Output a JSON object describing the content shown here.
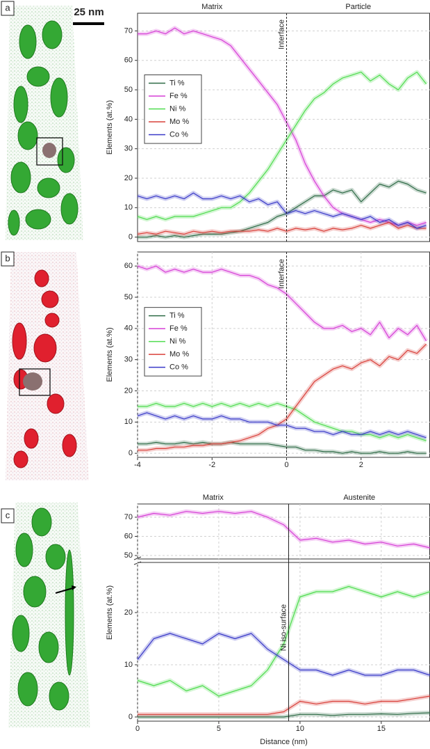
{
  "chart_data": [
    {
      "type": "line",
      "label": "a",
      "scale_bar": "25 nm",
      "ylabel": "Elements (at.%)",
      "region_labels": [
        "Matrix",
        "Particle"
      ],
      "annotations": [
        {
          "text": "Interface",
          "x": 0
        }
      ],
      "x": [
        -4,
        -3.75,
        -3.5,
        -3.25,
        -3,
        -2.75,
        -2.5,
        -2.25,
        -2,
        -1.75,
        -1.5,
        -1.25,
        -1,
        -0.75,
        -0.5,
        -0.25,
        0,
        0.25,
        0.5,
        0.75,
        1,
        1.25,
        1.5,
        1.75,
        2,
        2.25,
        2.5,
        2.75,
        3,
        3.25,
        3.5,
        3.75
      ],
      "xlim": [
        -4,
        3.85
      ],
      "ylim": [
        -1.5,
        76
      ],
      "yticks": [
        0,
        10,
        20,
        30,
        40,
        50,
        60,
        70
      ],
      "grid": true,
      "legend": "center left",
      "series": [
        {
          "name": "Ti %",
          "color": "#2e6b46",
          "values": [
            0,
            0,
            0.5,
            0,
            0.5,
            0,
            0.5,
            1,
            1,
            1,
            1.5,
            2,
            3,
            4,
            5,
            7,
            8,
            10,
            12,
            14,
            14,
            16,
            15,
            16,
            12,
            15,
            18,
            17,
            19,
            18,
            16,
            15
          ]
        },
        {
          "name": "Fe %",
          "color": "#d63fd6",
          "values": [
            69,
            69,
            70,
            69,
            71,
            69,
            70,
            69,
            68,
            67,
            65,
            61,
            57,
            53,
            49,
            45,
            39,
            33,
            25,
            19,
            14,
            10,
            8,
            7,
            6,
            5,
            6,
            5,
            4,
            5,
            4,
            5
          ]
        },
        {
          "name": "Ni %",
          "color": "#4fdc4f",
          "values": [
            7,
            6,
            7,
            6,
            7,
            7,
            7,
            8,
            9,
            10,
            10,
            12,
            15,
            19,
            23,
            28,
            33,
            38,
            43,
            47,
            49,
            52,
            54,
            55,
            56,
            53,
            55,
            52,
            50,
            54,
            56,
            52
          ]
        },
        {
          "name": "Mo %",
          "color": "#d9403a",
          "values": [
            1,
            1.5,
            1,
            2,
            1.5,
            1,
            2,
            1.5,
            2,
            1.5,
            2,
            2,
            2,
            2.5,
            2,
            3,
            2,
            3,
            2.5,
            3,
            2,
            3,
            2.5,
            3,
            4,
            3,
            4,
            5,
            3,
            4,
            3,
            3
          ]
        },
        {
          "name": "Co %",
          "color": "#3a3ac8",
          "values": [
            14,
            13,
            14,
            13,
            14,
            13,
            15,
            13,
            13,
            14,
            13,
            14,
            12,
            13,
            11,
            12,
            8,
            9,
            8,
            9,
            8,
            7,
            8,
            7,
            6,
            7,
            5,
            6,
            4,
            5,
            3,
            4
          ]
        }
      ]
    },
    {
      "type": "line",
      "label": "b",
      "ylabel": "Elements (at.%)",
      "annotations": [
        {
          "text": "Interface",
          "x": 0
        }
      ],
      "x": [
        -4,
        -3.75,
        -3.5,
        -3.25,
        -3,
        -2.75,
        -2.5,
        -2.25,
        -2,
        -1.75,
        -1.5,
        -1.25,
        -1,
        -0.75,
        -0.5,
        -0.25,
        0,
        0.25,
        0.5,
        0.75,
        1,
        1.25,
        1.5,
        1.75,
        2,
        2.25,
        2.5,
        2.75,
        3,
        3.25,
        3.5,
        3.75
      ],
      "xlim": [
        -4,
        3.85
      ],
      "ylim": [
        -1.3,
        64.5
      ],
      "xticks": [
        -4,
        -2,
        0,
        2
      ],
      "yticks": [
        0,
        10,
        20,
        30,
        40,
        50,
        60
      ],
      "grid": true,
      "legend": "center left",
      "series": [
        {
          "name": "Ti %",
          "color": "#2e6b46",
          "values": [
            3,
            3,
            3.5,
            3,
            3,
            3.5,
            3,
            3.5,
            3,
            3,
            3.5,
            3,
            3,
            3,
            3,
            2.5,
            2,
            2,
            1,
            1,
            0.5,
            0.5,
            0,
            0.5,
            0,
            0,
            0.5,
            0,
            0,
            0.5,
            0,
            0
          ]
        },
        {
          "name": "Fe %",
          "color": "#d63fd6",
          "values": [
            60,
            59,
            60,
            58,
            59,
            58,
            59,
            58,
            58,
            59,
            58,
            57,
            57,
            56,
            54,
            53,
            51,
            48,
            45,
            42,
            40,
            40,
            41,
            39,
            40,
            38,
            42,
            37,
            40,
            38,
            41,
            36
          ]
        },
        {
          "name": "Ni %",
          "color": "#4fdc4f",
          "values": [
            15,
            15,
            16,
            15,
            15,
            16,
            15,
            16,
            15,
            16,
            15,
            16,
            15,
            16,
            15,
            16,
            15,
            14,
            12,
            10,
            9,
            8,
            7,
            7,
            6,
            6,
            5,
            6,
            5,
            6,
            5,
            4
          ]
        },
        {
          "name": "Mo %",
          "color": "#d9403a",
          "values": [
            1,
            1,
            1.5,
            1.5,
            2,
            2,
            2.5,
            2.5,
            3,
            3,
            3.5,
            4,
            5,
            6,
            8,
            9,
            11,
            15,
            19,
            23,
            25,
            27,
            28,
            27,
            29,
            30,
            28,
            31,
            30,
            33,
            32,
            35
          ]
        },
        {
          "name": "Co %",
          "color": "#3a3ac8",
          "values": [
            12,
            13,
            12,
            11,
            12,
            11,
            12,
            11,
            11,
            12,
            11,
            11,
            10,
            10,
            10,
            9,
            9,
            8,
            8,
            7,
            7,
            6,
            7,
            6,
            6,
            7,
            6,
            7,
            6,
            7,
            6,
            5
          ]
        }
      ]
    },
    {
      "type": "line",
      "label": "c",
      "ylabel": "Elements (at.%)",
      "xlabel": "Distance (nm)",
      "region_labels": [
        "Matrix",
        "Austenite"
      ],
      "annotations": [
        {
          "text": "Ni iso-surface",
          "x": 9.3
        }
      ],
      "x": [
        0,
        1,
        2,
        3,
        4,
        5,
        6,
        7,
        8,
        9,
        10,
        11,
        12,
        13,
        14,
        15,
        16,
        17,
        18
      ],
      "xlim": [
        0,
        18
      ],
      "ylim": [
        -0.8,
        29.6
      ],
      "y2lim": [
        48.2,
        76.9
      ],
      "xticks": [
        0,
        5,
        10,
        15
      ],
      "yticks": [
        0,
        10,
        20
      ],
      "y2ticks": [
        50,
        60,
        70
      ],
      "grid": true,
      "series": [
        {
          "name": "Ti %",
          "color": "#2e6b46",
          "values": [
            0,
            0,
            0,
            0,
            0,
            0,
            0,
            0,
            0,
            0,
            0.5,
            0.5,
            0.3,
            0.5,
            0.5,
            0.6,
            0.5,
            0.7,
            0.8
          ]
        },
        {
          "name": "Fe %",
          "color": "#d63fd6",
          "axis": "y2",
          "values": [
            70,
            72,
            71,
            73,
            72,
            73,
            72,
            73,
            70,
            66,
            58,
            59,
            57,
            58,
            56,
            57,
            55,
            56,
            54
          ]
        },
        {
          "name": "Ni %",
          "color": "#4fdc4f",
          "values": [
            7,
            6,
            7,
            5,
            6,
            4,
            5,
            6,
            9,
            14,
            23,
            24,
            24,
            25,
            24,
            23,
            24,
            23,
            24
          ]
        },
        {
          "name": "Mo %",
          "color": "#d9403a",
          "values": [
            0.5,
            0.5,
            0.5,
            0.5,
            0.5,
            0.5,
            0.5,
            0.5,
            0.5,
            1,
            3,
            2.5,
            3,
            3,
            2.5,
            3,
            3,
            3.5,
            4
          ]
        },
        {
          "name": "Co %",
          "color": "#3a3ac8",
          "values": [
            11,
            15,
            16,
            15,
            14,
            16,
            15,
            16,
            13,
            11,
            9,
            9,
            8,
            9,
            8,
            8,
            9,
            9,
            8
          ]
        }
      ]
    }
  ]
}
